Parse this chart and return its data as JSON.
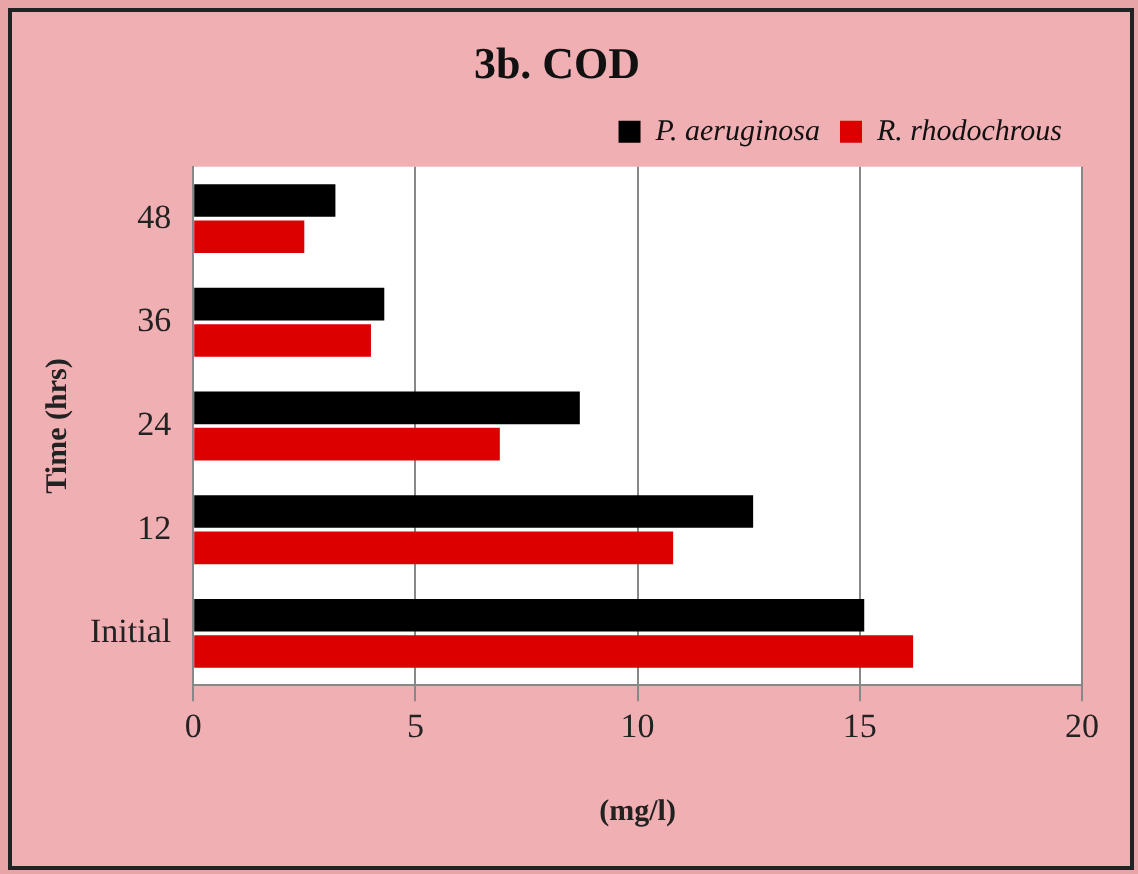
{
  "chart_data": {
    "type": "bar",
    "orientation": "horizontal",
    "title": "3b. COD",
    "xlabel": "(mg/l)",
    "ylabel": "Time (hrs)",
    "categories": [
      "48",
      "36",
      "24",
      "12",
      "Initial"
    ],
    "series": [
      {
        "name": "P. aeruginosa",
        "color": "#000000",
        "values": [
          3.2,
          4.3,
          8.7,
          12.6,
          15.1
        ]
      },
      {
        "name": "R. rhodochrous",
        "color": "#dd0000",
        "values": [
          2.5,
          4.0,
          6.9,
          10.8,
          16.2
        ]
      }
    ],
    "xlim": [
      0,
      20
    ],
    "xticks": [
      0,
      5,
      10,
      15,
      20
    ],
    "grid": "x",
    "legend": "top right"
  }
}
